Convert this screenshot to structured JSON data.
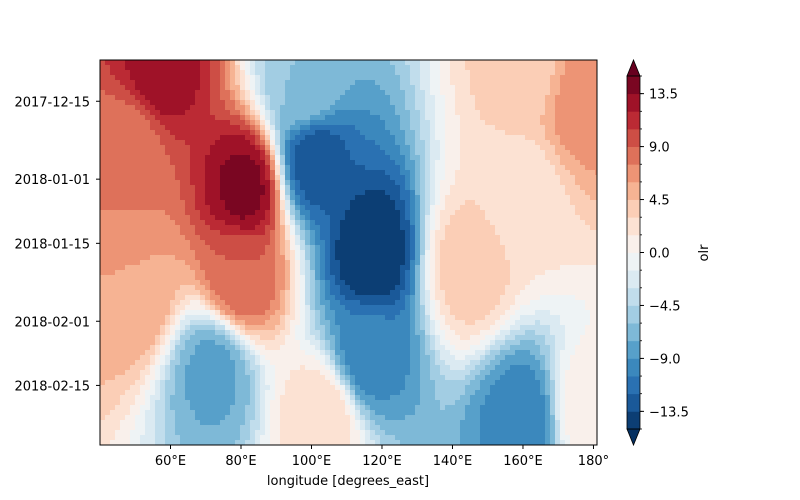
{
  "chart_data": {
    "type": "heatmap",
    "subtype": "filled-contour",
    "xlabel": "longitude [degrees_east]",
    "ylabel": "",
    "colorbar_label": "olr",
    "xlim": [
      40,
      181
    ],
    "x_ticks": [
      60,
      80,
      100,
      120,
      140,
      160,
      180
    ],
    "x_tick_labels": [
      "60°E",
      "80°E",
      "100°E",
      "120°E",
      "140°E",
      "160°E",
      "180°"
    ],
    "y_tick_labels": [
      "2017-12-15",
      "2018-01-01",
      "2018-01-15",
      "2018-02-01",
      "2018-02-15"
    ],
    "y_ticks": [
      "2017-12-15",
      "2018-01-01",
      "2018-01-15",
      "2018-02-01",
      "2018-02-15"
    ],
    "ylim": [
      "2017-12-06",
      "2018-02-28"
    ],
    "y_axis_inverted": true,
    "colorbar_range": [
      -15,
      15
    ],
    "colorbar_extend": "both",
    "colorbar_ticks": [
      13.5,
      9.0,
      4.5,
      0.0,
      -4.5,
      -9.0,
      -13.5
    ],
    "colorbar_tick_labels": [
      "13.5",
      "9.0",
      "4.5",
      "0.0",
      "−4.5",
      "−9.0",
      "−13.5"
    ],
    "colormap": "RdBu_r",
    "color_stops": [
      "#053061",
      "#2166ac",
      "#4393c3",
      "#92c5de",
      "#d1e5f0",
      "#f7f7f7",
      "#fddbc7",
      "#f4a582",
      "#d6604d",
      "#b2182b",
      "#67001f"
    ],
    "levels": [
      -15,
      -13.5,
      -12,
      -10.5,
      -9,
      -7.5,
      -6,
      -4.5,
      -3,
      -1.5,
      0,
      1.5,
      3,
      4.5,
      6,
      7.5,
      9,
      10.5,
      12,
      13.5,
      15
    ],
    "features": [
      {
        "lon": 48,
        "date": "2017-12-25",
        "olr": 8
      },
      {
        "lon": 57,
        "date": "2017-12-08",
        "olr": 13
      },
      {
        "lon": 81,
        "date": "2018-01-03",
        "olr": 14
      },
      {
        "lon": 80,
        "date": "2018-01-22",
        "olr": 9
      },
      {
        "lon": 50,
        "date": "2018-01-25",
        "olr": 6
      },
      {
        "lon": 72,
        "date": "2018-02-12",
        "olr": -8
      },
      {
        "lon": 101,
        "date": "2017-12-28",
        "olr": -13
      },
      {
        "lon": 98,
        "date": "2017-12-12",
        "olr": -6
      },
      {
        "lon": 117,
        "date": "2018-01-17",
        "olr": -15
      },
      {
        "lon": 116,
        "date": "2018-02-08",
        "olr": -10
      },
      {
        "lon": 103,
        "date": "2018-02-22",
        "olr": 3
      },
      {
        "lon": 145,
        "date": "2018-01-20",
        "olr": 4
      },
      {
        "lon": 160,
        "date": "2018-02-22",
        "olr": -10
      },
      {
        "lon": 160,
        "date": "2018-01-05",
        "olr": 2
      },
      {
        "lon": 162,
        "date": "2017-12-08",
        "olr": 4
      },
      {
        "lon": 177,
        "date": "2017-12-15",
        "olr": 7
      },
      {
        "lon": 178,
        "date": "2018-02-20",
        "olr": 1
      }
    ]
  }
}
